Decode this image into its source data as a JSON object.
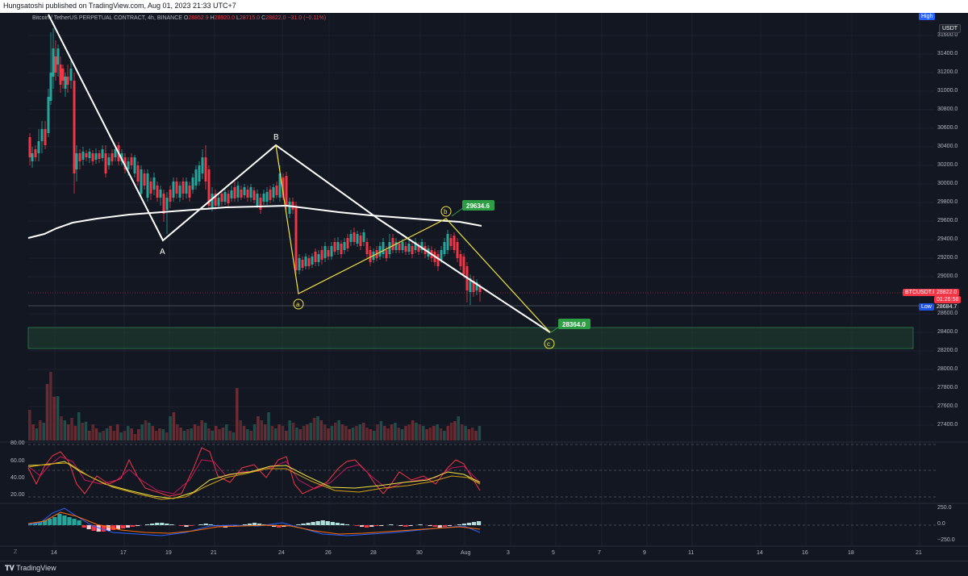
{
  "publisher": "Hungsatoshi published on TradingView.com, Aug 01, 2023 21:33 UTC+7",
  "symbol_header": {
    "title": "Bitcoin / TetherUS PERPETUAL CONTRACT, 4h, BINANCE",
    "o_label": "O",
    "o": "28852.9",
    "h_label": "H",
    "h": "28920.0",
    "l_label": "L",
    "l": "28715.0",
    "c_label": "C",
    "c": "28822.0",
    "change": "−31.0 (−0.11%)"
  },
  "price_axis": {
    "labels": [
      "31600.0",
      "31400.0",
      "31200.0",
      "31000.0",
      "30800.0",
      "30600.0",
      "30400.0",
      "30200.0",
      "30000.0",
      "29800.0",
      "29600.0",
      "29400.0",
      "29200.0",
      "29000.0",
      "28600.0",
      "28400.0",
      "28200.0",
      "28000.0",
      "27800.0",
      "27600.0",
      "27400.0"
    ],
    "currency": "USDT",
    "high_tag": "High",
    "last_symbol": "BTCUSDT.P",
    "last_price": "28822.0",
    "countdown": "01:26:58",
    "low_label": "Low",
    "low_value": "28684.7"
  },
  "time_axis": {
    "labels": [
      "14",
      "17",
      "19",
      "21",
      "24",
      "26",
      "28",
      "30",
      "Aug",
      "3",
      "5",
      "7",
      "9",
      "11",
      "14",
      "16",
      "18",
      "21"
    ]
  },
  "waves": {
    "A": "A",
    "B": "B",
    "a": "a",
    "b": "b",
    "c": "c",
    "b_price": "29634.6",
    "c_price": "28364.0"
  },
  "stoch_axis": [
    "80.00",
    "60.00",
    "40.00",
    "20.00"
  ],
  "macd_axis": [
    "250.0",
    "0.0",
    "−250.0"
  ],
  "footer": {
    "logo": "TradingView",
    "z": "Z"
  },
  "colors": {
    "bg": "#131722",
    "up": "#26a69a",
    "down": "#f23645",
    "zone": "#1f3a2a",
    "yellow": "#f0e442",
    "green_badge": "#2e9e44"
  }
}
